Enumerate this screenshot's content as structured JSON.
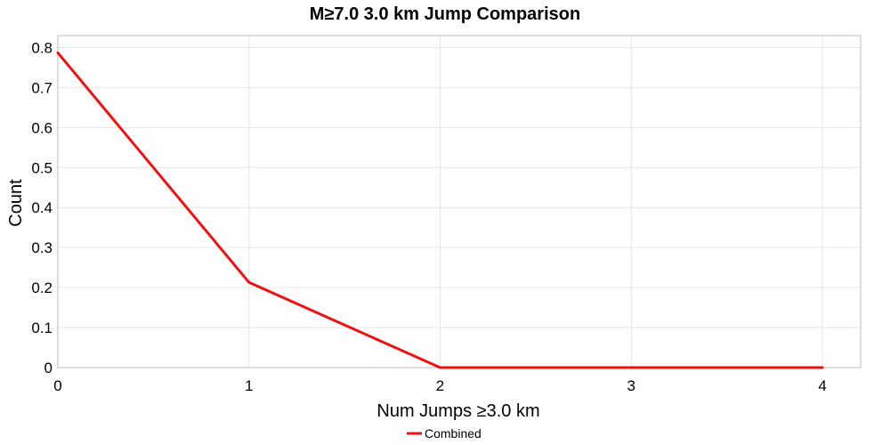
{
  "chart_data": {
    "type": "line",
    "title": "M≥7.0 3.0 km Jump Comparison",
    "xlabel": "Num Jumps ≥3.0 km",
    "ylabel": "Count",
    "x": [
      0,
      1,
      2,
      3,
      4
    ],
    "xlim": [
      0,
      4.2
    ],
    "ylim": [
      0,
      0.83
    ],
    "x_ticks": [
      0,
      1,
      2,
      3,
      4
    ],
    "x_tick_labels": [
      "0",
      "1",
      "2",
      "3",
      "4"
    ],
    "y_ticks": [
      0,
      0.1,
      0.2,
      0.3,
      0.4,
      0.5,
      0.6,
      0.7,
      0.8
    ],
    "y_tick_labels": [
      "0",
      "0.1",
      "0.2",
      "0.3",
      "0.4",
      "0.5",
      "0.6",
      "0.7",
      "0.8"
    ],
    "grid": true,
    "legend_position": "bottom-center",
    "series": [
      {
        "name": "Combined",
        "color": "#ee1111",
        "values": [
          0.787,
          0.213,
          0,
          0,
          0
        ]
      }
    ]
  }
}
